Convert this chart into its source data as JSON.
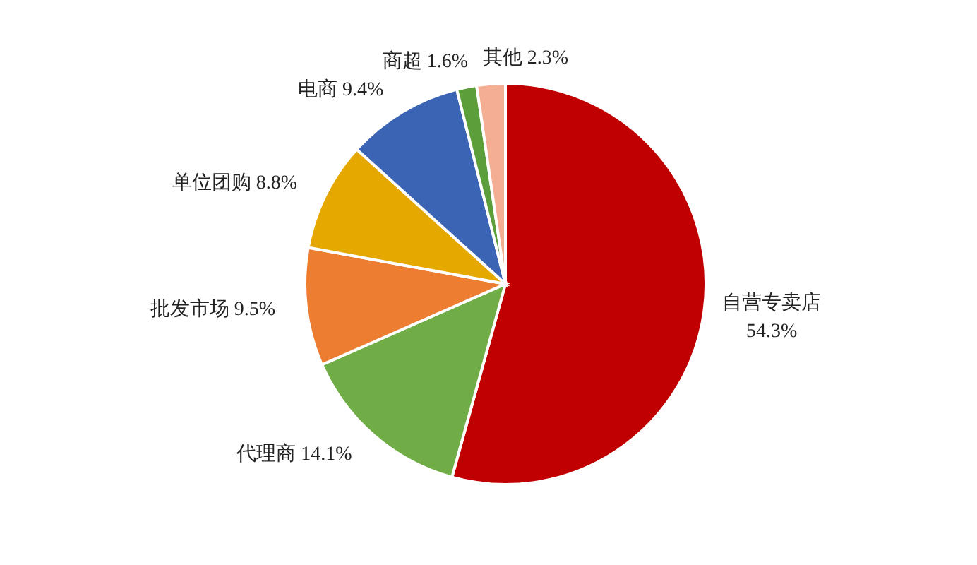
{
  "chart_data": {
    "type": "pie",
    "categories": [
      "自营专卖店",
      "代理商",
      "批发市场",
      "单位团购",
      "电商",
      "商超",
      "其他"
    ],
    "values": [
      54.3,
      14.1,
      9.5,
      8.8,
      9.4,
      1.6,
      2.3
    ],
    "value_labels": [
      "54.3%",
      "14.1%",
      "9.5%",
      "8.8%",
      "9.4%",
      "1.6%",
      "2.3%"
    ],
    "colors": [
      "#c00000",
      "#70ad47",
      "#ed7d31",
      "#e5a800",
      "#3c64b4",
      "#5b9e3a",
      "#f4ae94"
    ],
    "legend": false
  }
}
